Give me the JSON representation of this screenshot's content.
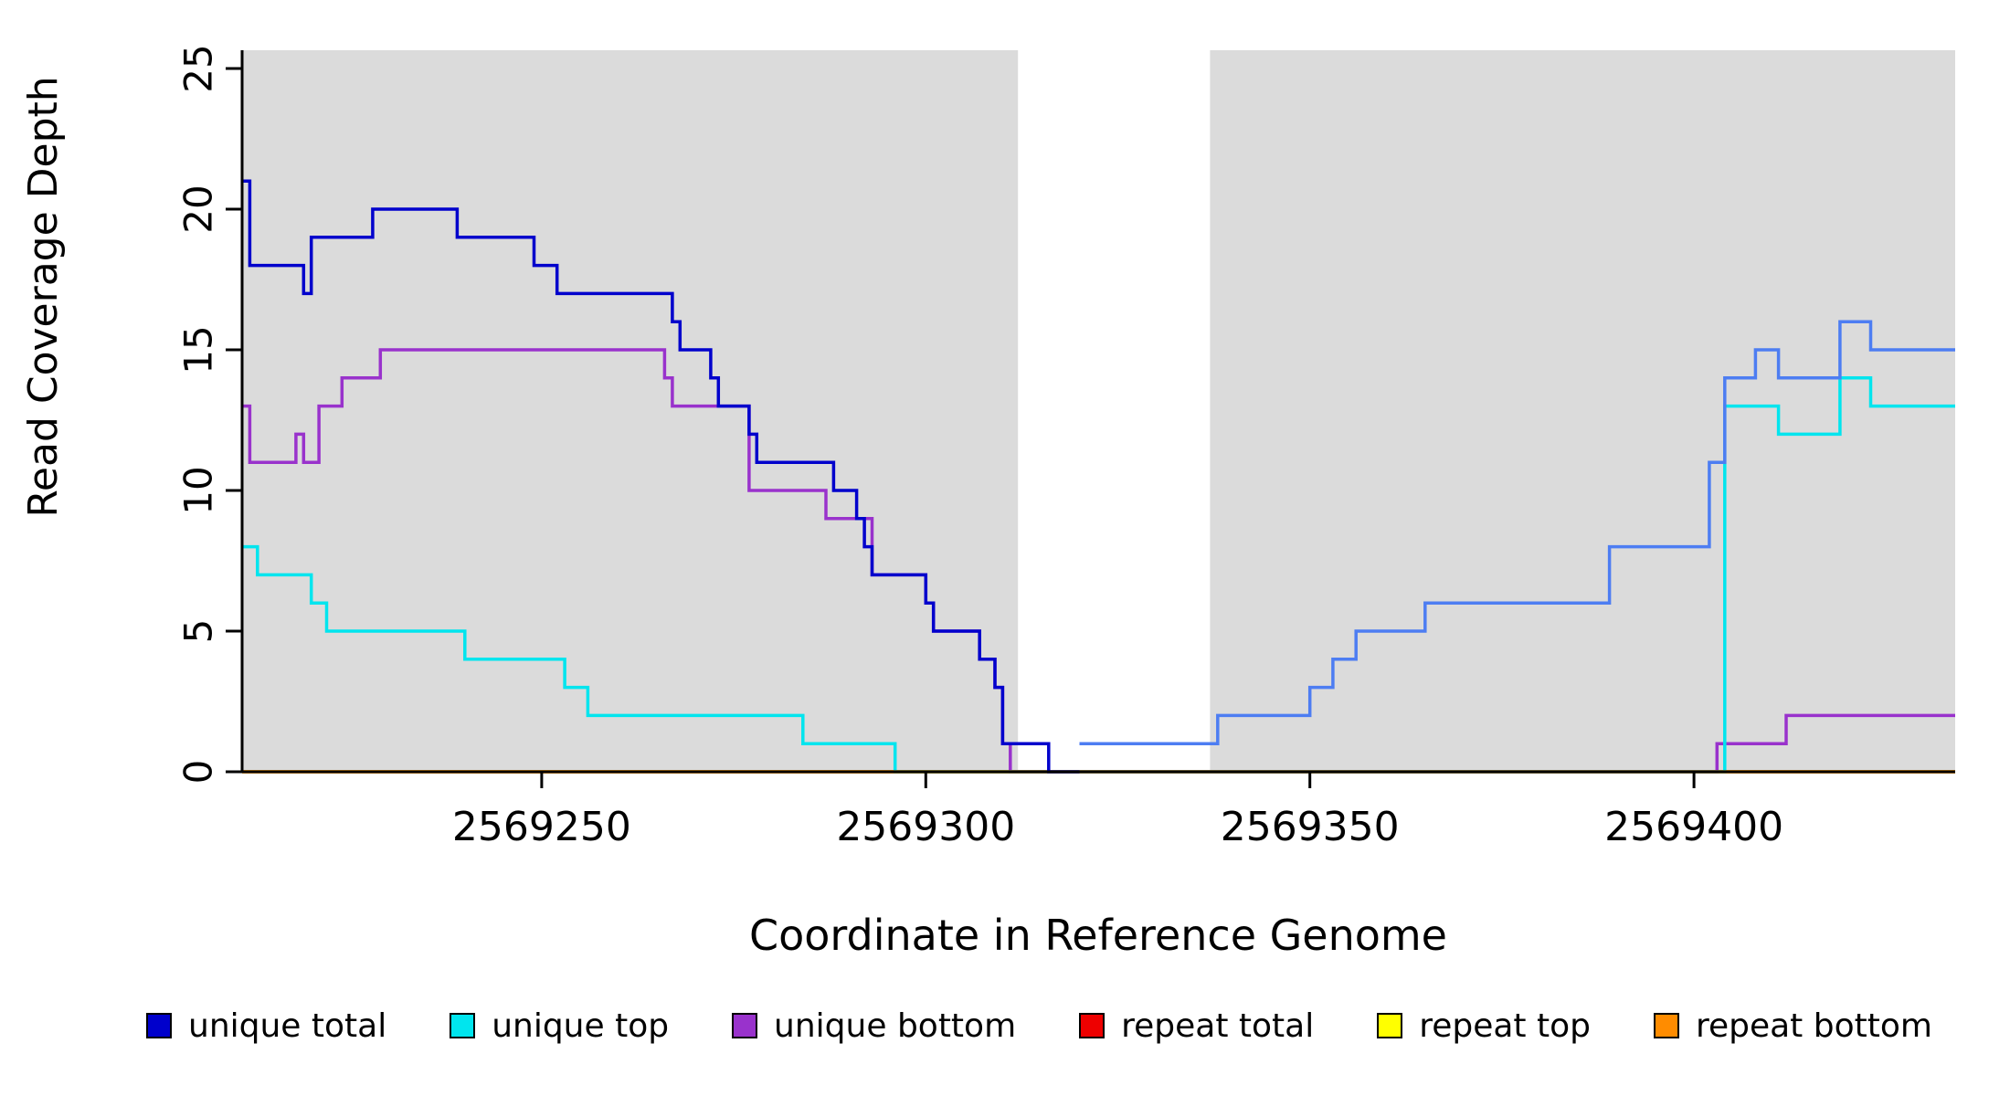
{
  "figure": {
    "shade_color": "#DBDBDB",
    "background_color": "#ffffff",
    "axis_color": "#000000"
  },
  "chart_data": {
    "type": "line",
    "step": true,
    "title": "",
    "xlabel": "Coordinate in Reference Genome",
    "ylabel": "Read Coverage Depth",
    "x_range": [
      2569211,
      2569434
    ],
    "y_range": [
      0,
      25.65
    ],
    "x_ticks": [
      2569250,
      2569300,
      2569350,
      2569400
    ],
    "y_ticks": [
      0,
      5,
      10,
      15,
      20,
      25
    ],
    "grid": false,
    "legend_position": "bottom",
    "shaded_regions": [
      [
        2569211,
        2569312
      ],
      [
        2569337,
        2569434
      ]
    ],
    "draw_order": [
      "repeat total",
      "repeat top",
      "unique bottom",
      "unique top",
      "repeat bottom",
      "unique total"
    ],
    "series": [
      {
        "name": "unique total",
        "legend_color": "#0000CC",
        "segments": [
          {
            "color": "#0000CC",
            "points": [
              [
                2569211,
                21
              ],
              [
                2569212,
                18
              ],
              [
                2569219,
                17
              ],
              [
                2569220,
                19
              ],
              [
                2569228,
                20
              ],
              [
                2569239,
                19
              ],
              [
                2569249,
                18
              ],
              [
                2569252,
                17
              ],
              [
                2569267,
                16
              ],
              [
                2569268,
                15
              ],
              [
                2569272,
                14
              ],
              [
                2569273,
                13
              ],
              [
                2569277,
                12
              ],
              [
                2569278,
                11
              ],
              [
                2569288,
                10
              ],
              [
                2569291,
                9
              ],
              [
                2569292,
                8
              ],
              [
                2569293,
                7
              ],
              [
                2569300,
                6
              ],
              [
                2569301,
                5
              ],
              [
                2569307,
                4
              ],
              [
                2569309,
                3
              ],
              [
                2569310,
                1
              ],
              [
                2569316,
                0
              ],
              [
                2569320,
                0
              ]
            ]
          },
          {
            "color": "#4D7DF2",
            "points": [
              [
                2569320,
                1
              ],
              [
                2569338,
                2
              ],
              [
                2569350,
                3
              ],
              [
                2569353,
                4
              ],
              [
                2569356,
                5
              ],
              [
                2569365,
                6
              ],
              [
                2569389,
                8
              ],
              [
                2569402,
                11
              ],
              [
                2569404,
                14
              ],
              [
                2569408,
                15
              ],
              [
                2569411,
                14
              ],
              [
                2569419,
                16
              ],
              [
                2569423,
                15
              ],
              [
                2569434,
                15
              ]
            ]
          }
        ]
      },
      {
        "name": "unique top",
        "legend_color": "#00E5EE",
        "segments": [
          {
            "color": "#00E5EE",
            "points": [
              [
                2569211,
                8
              ],
              [
                2569213,
                7
              ],
              [
                2569220,
                6
              ],
              [
                2569222,
                5
              ],
              [
                2569240,
                4
              ],
              [
                2569253,
                3
              ],
              [
                2569256,
                2
              ],
              [
                2569284,
                1
              ],
              [
                2569296,
                0
              ],
              [
                2569404,
                13
              ],
              [
                2569411,
                12
              ],
              [
                2569419,
                14
              ],
              [
                2569423,
                13
              ],
              [
                2569434,
                13
              ]
            ]
          }
        ]
      },
      {
        "name": "unique bottom",
        "legend_color": "#9932CC",
        "segments": [
          {
            "color": "#9932CC",
            "points": [
              [
                2569211,
                13
              ],
              [
                2569212,
                11
              ],
              [
                2569218,
                12
              ],
              [
                2569219,
                11
              ],
              [
                2569221,
                13
              ],
              [
                2569224,
                14
              ],
              [
                2569229,
                15
              ],
              [
                2569266,
                14
              ],
              [
                2569267,
                13
              ],
              [
                2569277,
                10
              ],
              [
                2569287,
                9
              ],
              [
                2569293,
                7
              ],
              [
                2569300,
                6
              ],
              [
                2569301,
                5
              ],
              [
                2569307,
                4
              ],
              [
                2569309,
                3
              ],
              [
                2569310,
                1
              ],
              [
                2569311,
                0
              ],
              [
                2569403,
                1
              ],
              [
                2569412,
                2
              ],
              [
                2569434,
                2
              ]
            ]
          }
        ]
      },
      {
        "name": "repeat total",
        "legend_color": "#EE0000",
        "segments": [
          {
            "color": "#EE0000",
            "points": [
              [
                2569211,
                0
              ],
              [
                2569434,
                0
              ]
            ]
          }
        ]
      },
      {
        "name": "repeat top",
        "legend_color": "#FFFF00",
        "segments": [
          {
            "color": "#FFFF00",
            "points": [
              [
                2569211,
                0
              ],
              [
                2569434,
                0
              ]
            ]
          }
        ]
      },
      {
        "name": "repeat bottom",
        "legend_color": "#FF8C00",
        "segments": [
          {
            "color": "#FF8C00",
            "points": [
              [
                2569211,
                0
              ],
              [
                2569434,
                0
              ]
            ]
          }
        ]
      }
    ]
  }
}
